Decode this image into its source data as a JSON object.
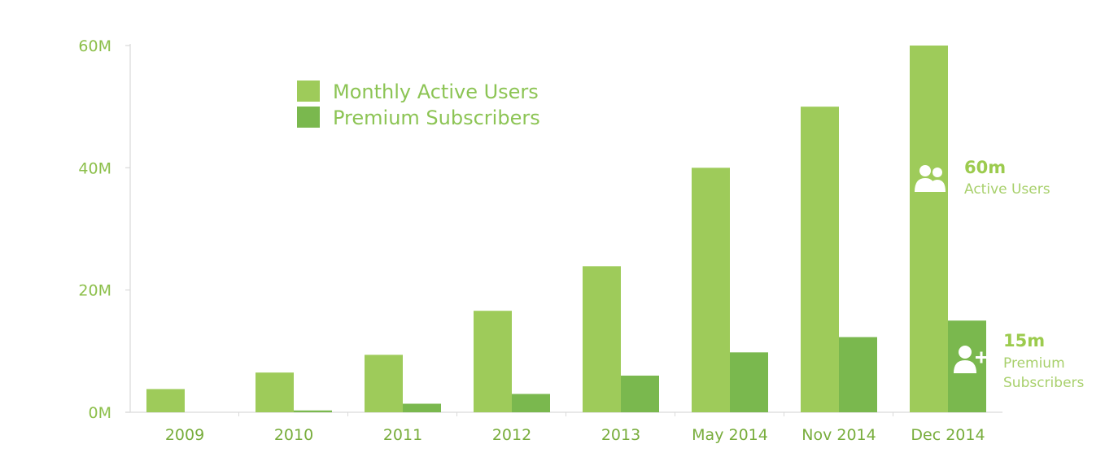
{
  "chart_data": {
    "type": "bar",
    "title": "",
    "xlabel": "",
    "ylabel": "",
    "categories": [
      "2009",
      "2010",
      "2011",
      "2012",
      "2013",
      "May 2014",
      "Nov 2014",
      "Dec 2014"
    ],
    "series": [
      {
        "name": "Monthly Active Users",
        "color": "#9ecb5a",
        "values": [
          3.8,
          6.5,
          9.4,
          16.6,
          23.9,
          40,
          50,
          60
        ]
      },
      {
        "name": "Premium Subscribers",
        "color": "#7ab84e",
        "values": [
          0,
          0.3,
          1.4,
          3.0,
          6.0,
          9.8,
          12.3,
          15
        ]
      }
    ],
    "ylim": [
      0,
      60
    ],
    "yticks": [
      "0M",
      "20M",
      "40M",
      "60M"
    ],
    "ytick_values": [
      0,
      20,
      40,
      60
    ],
    "grid": false,
    "legend_position": "top-left",
    "annotations": [
      {
        "value": "60m",
        "label": "Active Users",
        "icon": "users-icon"
      },
      {
        "value": "15m",
        "label_lines": [
          "Premium",
          "Subscribers"
        ],
        "icon": "add-user-icon"
      }
    ]
  },
  "colors": {
    "text_green": "#8cbf4a",
    "axis": "#d9d9d9"
  }
}
